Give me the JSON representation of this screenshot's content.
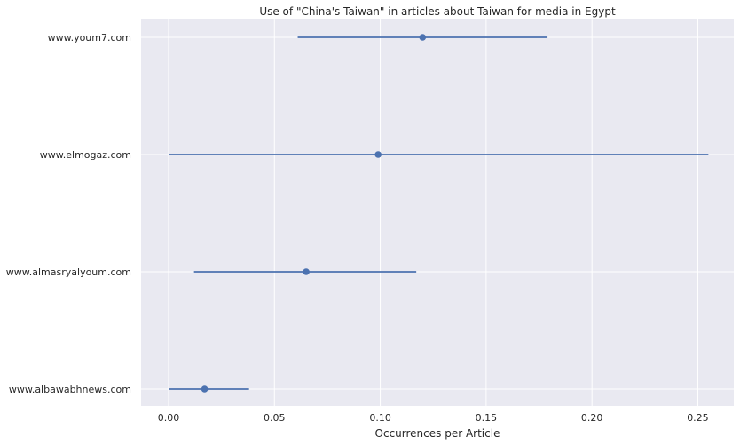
{
  "chart_data": {
    "type": "scatter",
    "title": "Use of \"China's Taiwan\" in articles about Taiwan for media in Egypt",
    "xlabel": "Occurrences per Article",
    "ylabel": "",
    "xlim": [
      -0.013,
      0.267
    ],
    "xticks": [
      0.0,
      0.05,
      0.1,
      0.15,
      0.2,
      0.25
    ],
    "xtick_labels": [
      "0.00",
      "0.05",
      "0.10",
      "0.15",
      "0.20",
      "0.25"
    ],
    "grid": true,
    "categories": [
      "www.youm7.com",
      "www.elmogaz.com",
      "www.almasryalyoum.com",
      "www.albawabhnews.com"
    ],
    "series": [
      {
        "values": [
          0.12,
          0.099,
          0.065,
          0.017
        ],
        "ci_low": [
          0.061,
          0.0,
          0.012,
          0.0
        ],
        "ci_high": [
          0.179,
          0.255,
          0.117,
          0.038
        ]
      }
    ],
    "colors": {
      "background": "#e9e9f1",
      "grid": "#ffffff",
      "series": "#4c72b0"
    }
  }
}
